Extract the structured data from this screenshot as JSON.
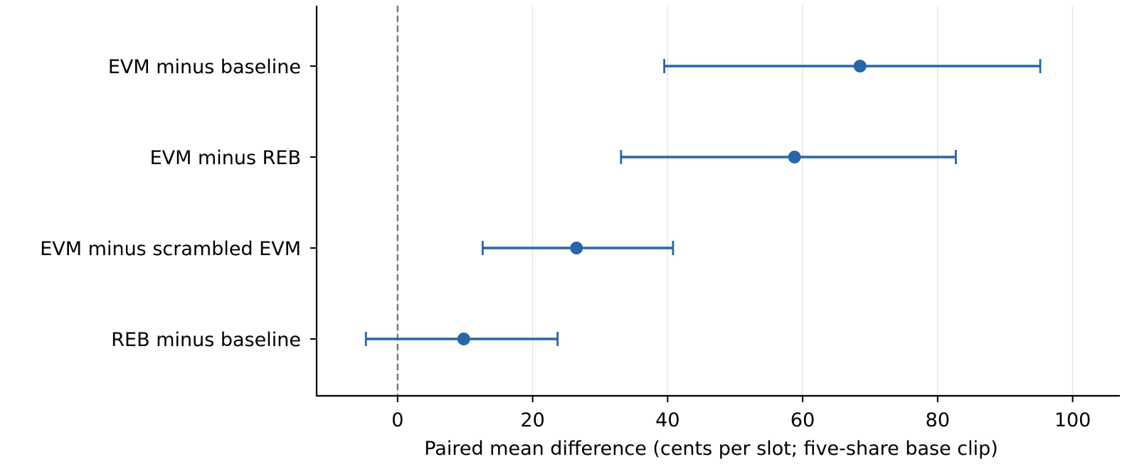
{
  "chart_data": {
    "type": "errorbar",
    "orientation": "horizontal",
    "xlabel": "Paired mean difference (cents per slot; five-share base clip)",
    "ylabel": "",
    "xlim": [
      -12,
      107
    ],
    "xticks": [
      0,
      20,
      40,
      60,
      80,
      100
    ],
    "grid": "x",
    "reference_line": {
      "x": 0,
      "style": "dashed",
      "color": "#777777"
    },
    "series_color": "#2766a8",
    "categories": [
      "EVM minus baseline",
      "EVM minus REB",
      "EVM minus scrambled EVM",
      "REB minus baseline"
    ],
    "points": [
      {
        "label": "EVM minus baseline",
        "estimate": 68.5,
        "ci_low": 39.5,
        "ci_high": 95.2
      },
      {
        "label": "EVM minus REB",
        "estimate": 58.8,
        "ci_low": 33.1,
        "ci_high": 82.7
      },
      {
        "label": "EVM minus scrambled EVM",
        "estimate": 26.5,
        "ci_low": 12.6,
        "ci_high": 40.8
      },
      {
        "label": "REB minus baseline",
        "estimate": 9.8,
        "ci_low": -4.7,
        "ci_high": 23.7
      }
    ]
  }
}
